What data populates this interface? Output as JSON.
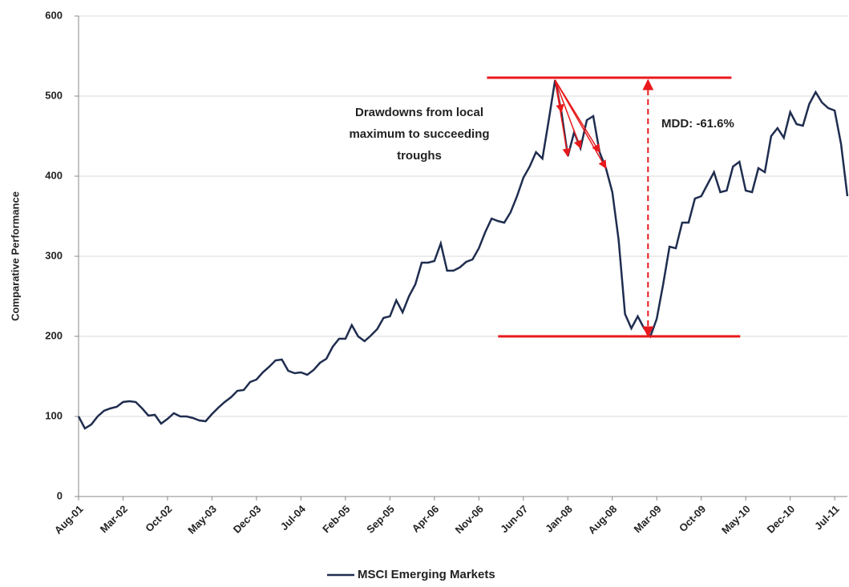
{
  "chart_data": {
    "type": "line",
    "y_label": "Comparative Performance",
    "categories": [
      "Aug-01",
      null,
      null,
      null,
      null,
      null,
      null,
      "Mar-02",
      null,
      null,
      null,
      null,
      null,
      null,
      "Oct-02",
      null,
      null,
      null,
      null,
      null,
      null,
      "May-03",
      null,
      null,
      null,
      null,
      null,
      null,
      "Dec-03",
      null,
      null,
      null,
      null,
      null,
      null,
      "Jul-04",
      null,
      null,
      null,
      null,
      null,
      null,
      "Feb-05",
      null,
      null,
      null,
      null,
      null,
      null,
      "Sep-05",
      null,
      null,
      null,
      null,
      null,
      null,
      "Apr-06",
      null,
      null,
      null,
      null,
      null,
      null,
      "Nov-06",
      null,
      null,
      null,
      null,
      null,
      null,
      "Jun-07",
      null,
      null,
      null,
      null,
      null,
      null,
      "Jan-08",
      null,
      null,
      null,
      null,
      null,
      null,
      "Aug-08",
      null,
      null,
      null,
      null,
      null,
      null,
      "Mar-09",
      null,
      null,
      null,
      null,
      null,
      null,
      "Oct-09",
      null,
      null,
      null,
      null,
      null,
      null,
      "May-10",
      null,
      null,
      null,
      null,
      null,
      null,
      "Dec-10",
      null,
      null,
      null,
      null,
      null,
      null,
      "Jul-11",
      null,
      null
    ],
    "series": [
      {
        "name": "MSCI Emerging Markets",
        "color": "#1f2d4f",
        "values": [
          100,
          85,
          90,
          100,
          107,
          110,
          112,
          118,
          119,
          118,
          110,
          101,
          102,
          91,
          97,
          104,
          100,
          100,
          98,
          95,
          94,
          103,
          111,
          118,
          124,
          132,
          133,
          143,
          146,
          155,
          162,
          170,
          171,
          157,
          154,
          155,
          152,
          158,
          167,
          172,
          187,
          197,
          197,
          214,
          200,
          194,
          201,
          209,
          223,
          225,
          245,
          230,
          250,
          265,
          292,
          292,
          294,
          316,
          282,
          282,
          286,
          293,
          296,
          310,
          330,
          347,
          344,
          342,
          355,
          375,
          398,
          412,
          430,
          422,
          470,
          520,
          480,
          425,
          455,
          435,
          470,
          475,
          430,
          410,
          380,
          320,
          228,
          210,
          225,
          210,
          200,
          222,
          265,
          312,
          310,
          342,
          342,
          372,
          375,
          390,
          405,
          380,
          382,
          412,
          418,
          382,
          380,
          410,
          405,
          450,
          460,
          448,
          480,
          465,
          463,
          490,
          505,
          492,
          485,
          482,
          440,
          375
        ]
      }
    ],
    "ylim": [
      0,
      600
    ],
    "yticks": [
      0,
      100,
      200,
      300,
      400,
      500,
      600
    ],
    "grid": true,
    "legend": "bottom",
    "annotation_color": "#e8191c",
    "annotations": {
      "drawdowns": [
        "Drawdowns from local",
        "maximum to succeeding",
        "troughs"
      ],
      "mdd": "MDD: -61.6%"
    }
  }
}
